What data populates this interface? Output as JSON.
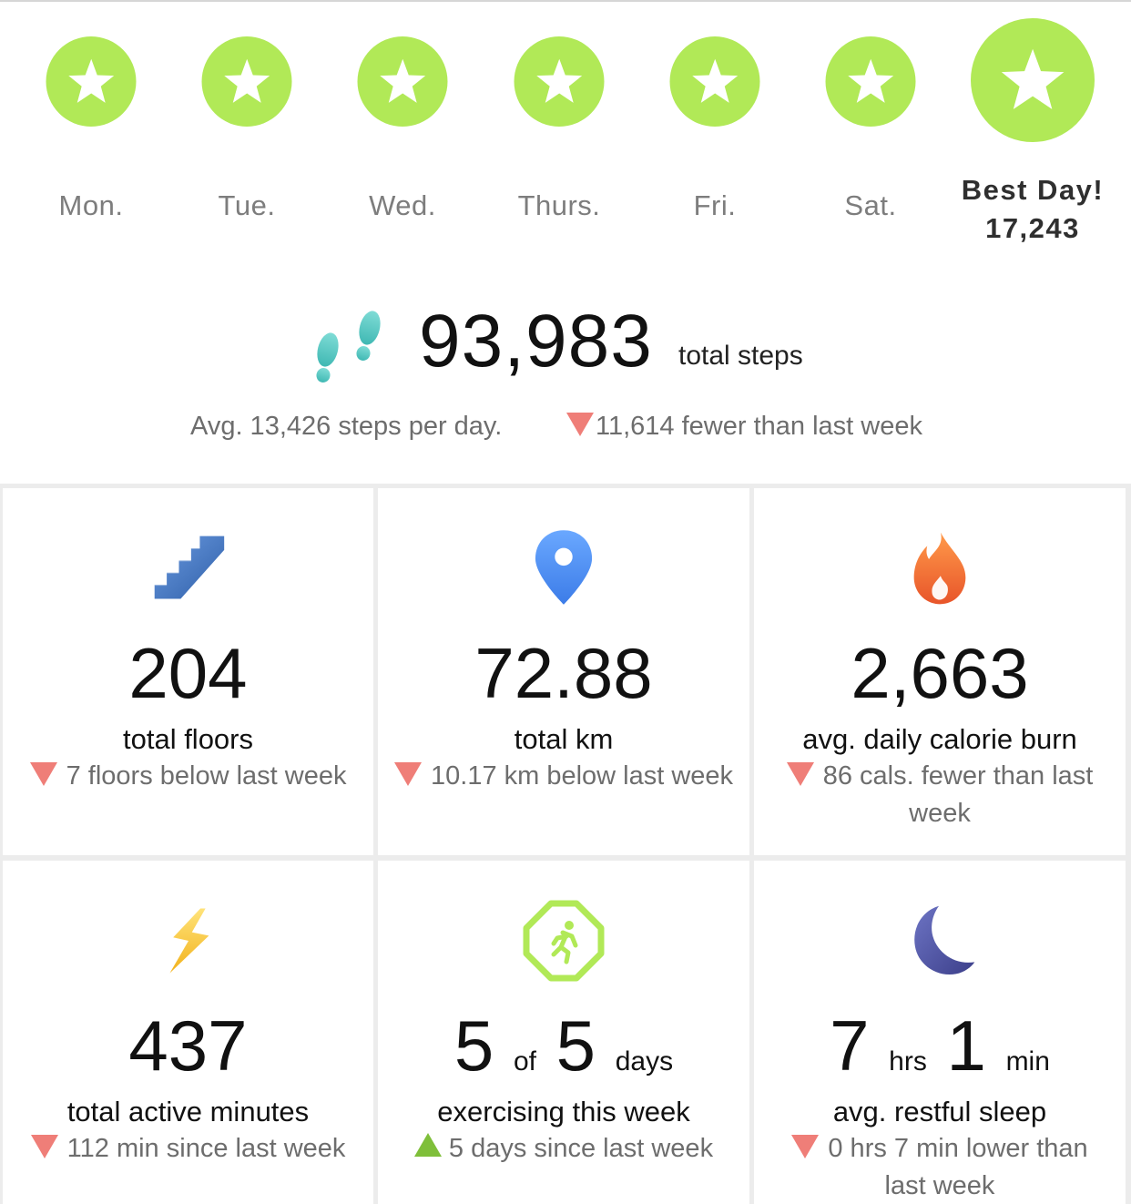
{
  "week": {
    "days": [
      {
        "label": "Mon."
      },
      {
        "label": "Tue."
      },
      {
        "label": "Wed."
      },
      {
        "label": "Thurs."
      },
      {
        "label": "Fri."
      },
      {
        "label": "Sat."
      }
    ],
    "best": {
      "label": "Best Day!",
      "value": "17,243"
    },
    "badge_color": "#b1e957",
    "badge_icon": "star-icon"
  },
  "steps": {
    "total": "93,983",
    "unit": "total steps",
    "avg": "Avg. 13,426 steps per day.",
    "comparison": "11,614 fewer than last week",
    "icon": "footsteps-icon"
  },
  "stats": [
    {
      "icon": "stairs-icon",
      "value": "204",
      "label": "total floors",
      "trend": "down",
      "comparison": "7 floors below last week"
    },
    {
      "icon": "location-pin-icon",
      "value": "72.88",
      "label": "total km",
      "trend": "down",
      "comparison": "10.17 km below last week"
    },
    {
      "icon": "flame-icon",
      "value": "2,663",
      "label": "avg. daily calorie burn",
      "trend": "down",
      "comparison": "86 cals. fewer than last week"
    },
    {
      "icon": "lightning-icon",
      "value": "437",
      "label": "total active minutes",
      "trend": "down",
      "comparison": "112 min since last week"
    },
    {
      "icon": "exercise-runner-icon",
      "value_parts": {
        "a": "5",
        "of": "of",
        "b": "5",
        "unit": "days"
      },
      "label": "exercising this week",
      "trend": "up",
      "comparison": "5 days since last week"
    },
    {
      "icon": "moon-icon",
      "value_parts": {
        "hrs": "7",
        "hrs_unit": "hrs",
        "min": "1",
        "min_unit": "min"
      },
      "label": "avg. restful sleep",
      "trend": "down",
      "comparison": "0 hrs 7 min lower than last week"
    }
  ],
  "colors": {
    "down": "#ef7e78",
    "up": "#7fbf3a"
  }
}
